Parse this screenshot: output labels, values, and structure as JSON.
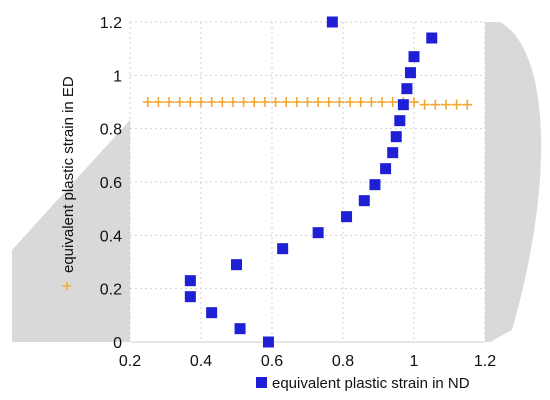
{
  "chart_data": {
    "type": "scatter",
    "xlabel": "equivalent plastic strain in ND",
    "ylabel": "equivalent plastic strain in ED",
    "xlim": [
      0.2,
      1.2
    ],
    "ylim": [
      0,
      1.2
    ],
    "x_ticks": [
      "0.2",
      "0.4",
      "0.6",
      "0.8",
      "1",
      "1.2"
    ],
    "y_ticks": [
      "0",
      "0.2",
      "0.4",
      "0.6",
      "0.8",
      "1",
      "1.2"
    ],
    "grid": true,
    "colors": {
      "squares": "#1f1fd6",
      "plus": "#f0a830",
      "grid": "#d0d0d0",
      "yield_surface_fill": "#d9d9d9"
    },
    "series": [
      {
        "marker": "square",
        "points": [
          [
            0.37,
            0.23
          ],
          [
            0.37,
            0.17
          ],
          [
            0.43,
            0.11
          ],
          [
            0.5,
            0.29
          ],
          [
            0.51,
            0.05
          ],
          [
            0.59,
            0.0
          ],
          [
            0.63,
            0.35
          ],
          [
            0.73,
            0.41
          ],
          [
            0.77,
            1.2
          ],
          [
            0.81,
            0.47
          ],
          [
            0.86,
            0.53
          ],
          [
            0.89,
            0.59
          ],
          [
            0.92,
            0.65
          ],
          [
            0.94,
            0.71
          ],
          [
            0.95,
            0.77
          ],
          [
            0.96,
            0.83
          ],
          [
            0.97,
            0.89
          ],
          [
            0.98,
            0.95
          ],
          [
            0.99,
            1.01
          ],
          [
            1.0,
            1.07
          ],
          [
            1.05,
            1.14
          ]
        ]
      },
      {
        "marker": "plus",
        "points": [
          [
            0.25,
            0.9
          ],
          [
            0.28,
            0.9
          ],
          [
            0.31,
            0.9
          ],
          [
            0.34,
            0.9
          ],
          [
            0.37,
            0.9
          ],
          [
            0.4,
            0.9
          ],
          [
            0.43,
            0.9
          ],
          [
            0.46,
            0.9
          ],
          [
            0.49,
            0.9
          ],
          [
            0.52,
            0.9
          ],
          [
            0.55,
            0.9
          ],
          [
            0.58,
            0.9
          ],
          [
            0.61,
            0.9
          ],
          [
            0.64,
            0.9
          ],
          [
            0.67,
            0.9
          ],
          [
            0.7,
            0.9
          ],
          [
            0.73,
            0.9
          ],
          [
            0.76,
            0.9
          ],
          [
            0.79,
            0.9
          ],
          [
            0.82,
            0.9
          ],
          [
            0.85,
            0.9
          ],
          [
            0.88,
            0.9
          ],
          [
            0.91,
            0.9
          ],
          [
            0.94,
            0.9
          ],
          [
            0.97,
            0.9
          ],
          [
            1.0,
            0.9
          ],
          [
            1.03,
            0.89
          ],
          [
            1.06,
            0.89
          ],
          [
            1.09,
            0.89
          ],
          [
            1.12,
            0.89
          ],
          [
            1.15,
            0.89
          ]
        ]
      }
    ]
  }
}
